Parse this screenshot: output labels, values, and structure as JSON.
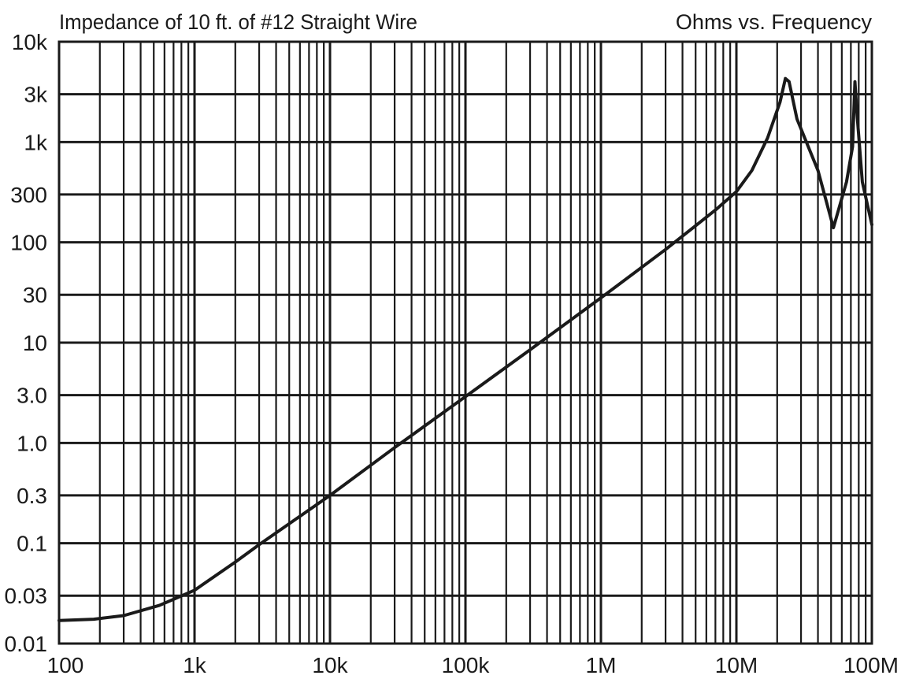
{
  "chart_data": {
    "type": "line",
    "title": "Impedance of 10 ft. of #12 Straight Wire",
    "subtitle": "Ohms  vs. Frequency",
    "x_scale": "log",
    "y_scale": "log",
    "xlim": [
      100,
      100000000
    ],
    "ylim": [
      0.01,
      10000
    ],
    "grid": true,
    "x_ticks": [
      {
        "value": 100,
        "label": "100"
      },
      {
        "value": 1000,
        "label": "1k"
      },
      {
        "value": 10000,
        "label": "10k"
      },
      {
        "value": 100000,
        "label": "100k"
      },
      {
        "value": 1000000,
        "label": "1M"
      },
      {
        "value": 10000000,
        "label": "10M"
      },
      {
        "value": 100000000,
        "label": "100M"
      }
    ],
    "y_ticks": [
      {
        "value": 0.01,
        "label": "0.01"
      },
      {
        "value": 0.03,
        "label": "0.03"
      },
      {
        "value": 0.1,
        "label": "0.1"
      },
      {
        "value": 0.3,
        "label": "0.3"
      },
      {
        "value": 1,
        "label": "1.0"
      },
      {
        "value": 3,
        "label": "3.0"
      },
      {
        "value": 10,
        "label": "10"
      },
      {
        "value": 30,
        "label": "30"
      },
      {
        "value": 100,
        "label": "100"
      },
      {
        "value": 300,
        "label": "300"
      },
      {
        "value": 1000,
        "label": "1k"
      },
      {
        "value": 3000,
        "label": "3k"
      },
      {
        "value": 10000,
        "label": "10k"
      }
    ],
    "series": [
      {
        "points": [
          [
            100,
            0.017
          ],
          [
            180,
            0.0175
          ],
          [
            300,
            0.019
          ],
          [
            550,
            0.024
          ],
          [
            1000,
            0.034
          ],
          [
            2000,
            0.065
          ],
          [
            3000,
            0.097
          ],
          [
            10000,
            0.3
          ],
          [
            30000,
            0.9
          ],
          [
            100000,
            2.9
          ],
          [
            300000,
            8.5
          ],
          [
            1000000,
            28
          ],
          [
            3000000,
            85
          ],
          [
            7000000,
            210
          ],
          [
            10000000,
            320
          ],
          [
            13000000,
            520
          ],
          [
            17000000,
            1100
          ],
          [
            21000000,
            2500
          ],
          [
            23000000,
            4300
          ],
          [
            24500000,
            4000
          ],
          [
            28000000,
            1700
          ],
          [
            40000000,
            520
          ],
          [
            52000000,
            140
          ],
          [
            65000000,
            400
          ],
          [
            72000000,
            900
          ],
          [
            75000000,
            4000
          ],
          [
            78000000,
            1800
          ],
          [
            85000000,
            400
          ],
          [
            100000000,
            150
          ]
        ]
      }
    ]
  }
}
